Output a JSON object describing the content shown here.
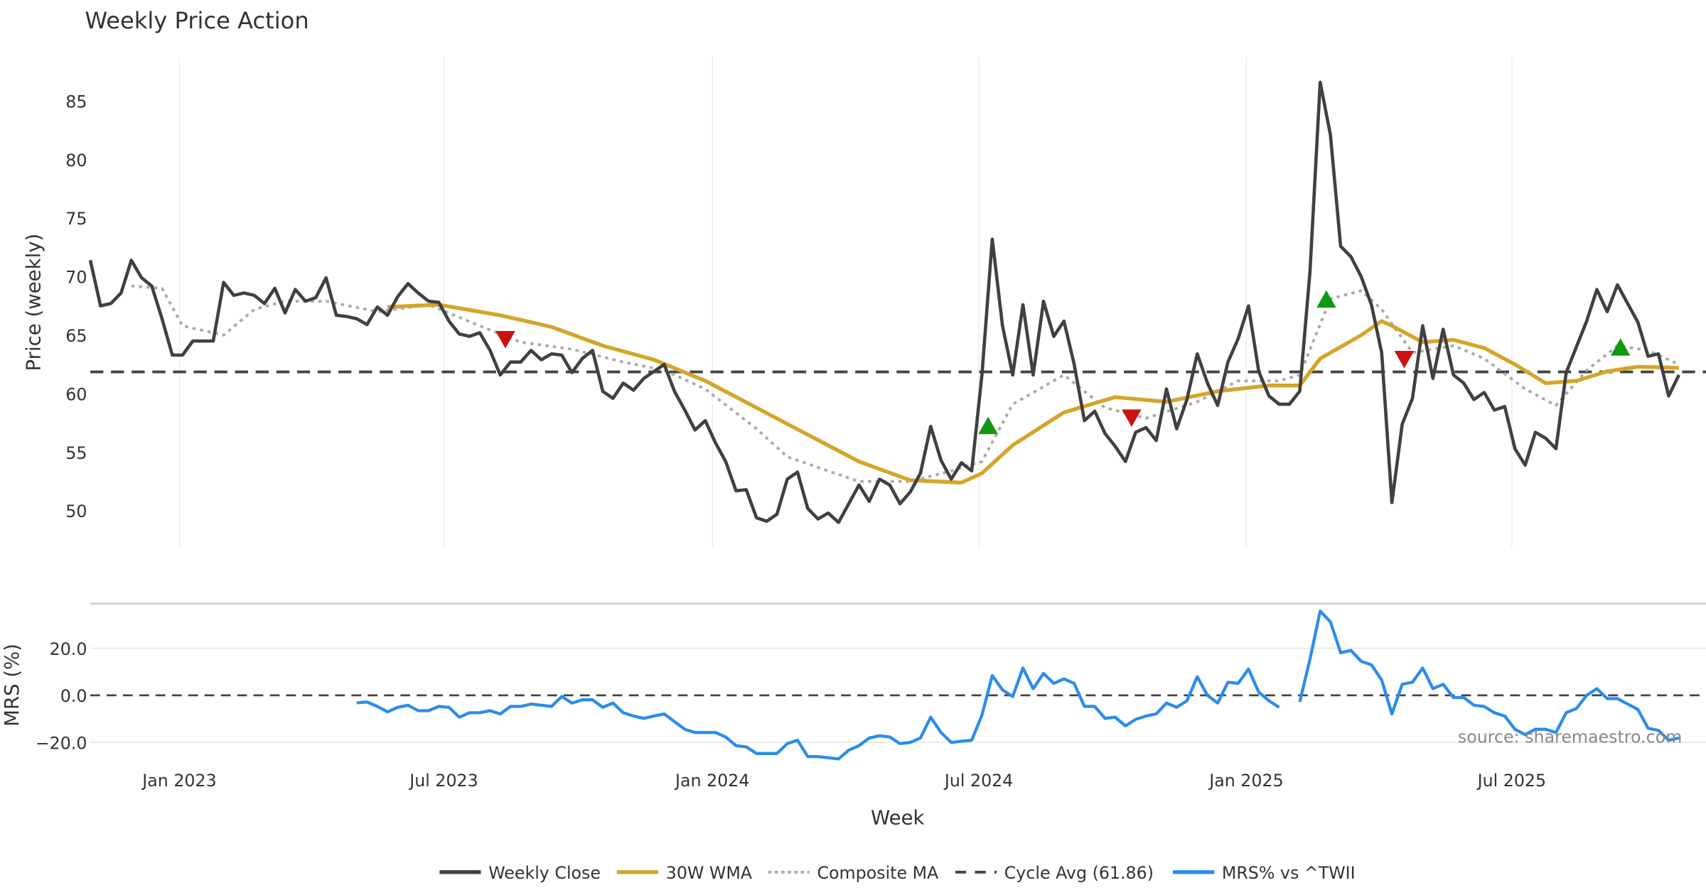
{
  "chart_data": [
    {
      "type": "line",
      "title": "Weekly Price Action",
      "xlabel": "Week",
      "ylabel": "Price (weekly)",
      "ylim": [
        46.9,
        88.8
      ],
      "yticks": [
        50,
        55,
        60,
        65,
        70,
        75,
        80,
        85
      ],
      "x_unit": "week index (0 = first week shown, ~Nov 2022)",
      "xticks": [
        {
          "label": "Jan 2023",
          "week": 8.7
        },
        {
          "label": "Jul 2023",
          "week": 34.5
        },
        {
          "label": "Jan 2024",
          "week": 60.7
        },
        {
          "label": "Jul 2024",
          "week": 86.7
        },
        {
          "label": "Jan 2025",
          "week": 112.8
        },
        {
          "label": "Jul 2025",
          "week": 138.7
        }
      ],
      "grid": "vertical",
      "cycle_avg": 61.86,
      "series": [
        {
          "name": "Weekly Close",
          "color": "#404040",
          "values": [
            71.4,
            67.5,
            67.7,
            68.6,
            71.4,
            69.9,
            69.2,
            66.4,
            63.3,
            63.3,
            64.5,
            64.5,
            64.5,
            69.5,
            68.4,
            68.6,
            68.4,
            67.7,
            69.0,
            66.9,
            68.9,
            67.9,
            68.2,
            69.9,
            66.7,
            66.6,
            66.4,
            65.9,
            67.4,
            66.7,
            68.3,
            69.4,
            68.6,
            67.9,
            67.8,
            66.2,
            65.1,
            64.9,
            65.2,
            63.7,
            61.6,
            62.7,
            62.7,
            63.7,
            62.9,
            63.4,
            63.3,
            61.8,
            63.0,
            63.7,
            60.2,
            59.6,
            60.9,
            60.3,
            61.3,
            61.9,
            62.5,
            60.2,
            58.6,
            56.9,
            57.7,
            55.8,
            54.2,
            51.7,
            51.8,
            49.4,
            49.1,
            49.7,
            52.7,
            53.3,
            50.2,
            49.3,
            49.8,
            49.0,
            50.6,
            52.2,
            50.8,
            52.7,
            52.2,
            50.6,
            51.6,
            53.2,
            57.2,
            54.3,
            52.7,
            54.1,
            53.4,
            61.6,
            73.2,
            65.8,
            61.6,
            67.6,
            61.6,
            67.9,
            64.9,
            66.2,
            62.5,
            57.7,
            58.5,
            56.6,
            55.5,
            54.2,
            56.7,
            57.1,
            56.0,
            60.4,
            57.0,
            59.5,
            63.4,
            60.9,
            59.0,
            62.7,
            64.7,
            67.5,
            61.9,
            59.8,
            59.1,
            59.1,
            60.2,
            70.4,
            86.6,
            82.1,
            72.6,
            71.7,
            70.0,
            67.6,
            63.5,
            50.7,
            57.4,
            59.6,
            65.8,
            61.3,
            65.5,
            61.6,
            60.9,
            59.5,
            60.1,
            58.6,
            58.9,
            55.3,
            53.9,
            56.7,
            56.2,
            55.3,
            61.8,
            64.0,
            66.2,
            68.9,
            67.0,
            69.3,
            67.7,
            66.1,
            63.2,
            63.4,
            59.8,
            61.6
          ]
        },
        {
          "name": "30W WMA",
          "color": "#d4a52a",
          "points": [
            [
              29,
              67.4
            ],
            [
              34,
              67.6
            ],
            [
              40,
              66.7
            ],
            [
              45,
              65.7
            ],
            [
              50,
              64.1
            ],
            [
              55,
              62.9
            ],
            [
              60,
              61.1
            ],
            [
              65,
              58.8
            ],
            [
              70,
              56.5
            ],
            [
              75,
              54.2
            ],
            [
              80,
              52.6
            ],
            [
              85,
              52.4
            ],
            [
              87,
              53.2
            ],
            [
              90,
              55.6
            ],
            [
              95,
              58.4
            ],
            [
              100,
              59.7
            ],
            [
              105,
              59.3
            ],
            [
              110,
              60.2
            ],
            [
              115,
              60.7
            ],
            [
              118,
              60.7
            ],
            [
              120,
              63.0
            ],
            [
              124,
              65.0
            ],
            [
              126,
              66.2
            ],
            [
              127,
              65.8
            ],
            [
              130,
              64.4
            ],
            [
              133,
              64.6
            ],
            [
              136,
              63.9
            ],
            [
              139,
              62.5
            ],
            [
              142,
              60.9
            ],
            [
              145,
              61.1
            ],
            [
              148,
              61.9
            ],
            [
              151,
              62.3
            ],
            [
              155,
              62.2
            ]
          ]
        },
        {
          "name": "Composite MA",
          "color": "#aaaaaa",
          "points": [
            [
              4,
              69.2
            ],
            [
              7,
              69.0
            ],
            [
              9,
              65.8
            ],
            [
              13,
              65.0
            ],
            [
              16,
              67.2
            ],
            [
              19,
              67.9
            ],
            [
              23,
              67.9
            ],
            [
              28,
              67.0
            ],
            [
              33,
              67.6
            ],
            [
              38,
              65.8
            ],
            [
              42,
              64.4
            ],
            [
              47,
              63.8
            ],
            [
              52,
              62.7
            ],
            [
              56,
              62.0
            ],
            [
              60,
              60.4
            ],
            [
              65,
              57.0
            ],
            [
              68,
              54.6
            ],
            [
              71,
              53.7
            ],
            [
              75,
              52.5
            ],
            [
              80,
              52.5
            ],
            [
              84,
              53.4
            ],
            [
              87,
              54.2
            ],
            [
              90,
              59.1
            ],
            [
              95,
              61.6
            ],
            [
              99,
              58.8
            ],
            [
              103,
              57.9
            ],
            [
              108,
              59.3
            ],
            [
              112,
              61.1
            ],
            [
              116,
              61.1
            ],
            [
              118,
              61.6
            ],
            [
              121,
              68.1
            ],
            [
              124,
              68.8
            ],
            [
              126,
              67.2
            ],
            [
              129,
              63.5
            ],
            [
              133,
              64.1
            ],
            [
              136,
              63.0
            ],
            [
              140,
              60.4
            ],
            [
              143,
              59.0
            ],
            [
              146,
              62.0
            ],
            [
              149,
              64.1
            ],
            [
              152,
              63.7
            ],
            [
              155,
              62.5
            ]
          ]
        },
        {
          "name": "Cycle Avg (61.86)",
          "color": "#444444",
          "constant": 61.86
        }
      ],
      "signals": [
        {
          "type": "sell",
          "week": 40.5,
          "value": 64.7,
          "color": "#cc1111"
        },
        {
          "type": "buy",
          "week": 87.6,
          "value": 57.2,
          "color": "#119911"
        },
        {
          "type": "sell",
          "week": 101.6,
          "value": 58.0,
          "color": "#cc1111"
        },
        {
          "type": "buy",
          "week": 120.6,
          "value": 68.0,
          "color": "#119911"
        },
        {
          "type": "sell",
          "week": 128.2,
          "value": 63.0,
          "color": "#cc1111"
        },
        {
          "type": "buy",
          "week": 149.3,
          "value": 63.9,
          "color": "#119911"
        }
      ]
    },
    {
      "type": "line",
      "ylabel": "MRS (%)",
      "ylim": [
        -28,
        39
      ],
      "yticks": [
        {
          "v": 20,
          "label": "20.0"
        },
        {
          "v": 0,
          "label": "0.0"
        },
        {
          "v": -20,
          "label": "−20.0"
        }
      ],
      "series": [
        {
          "name": "MRS% vs ^TWII",
          "color": "#2b8ceb",
          "start_week": 26,
          "values": [
            -3.2,
            -2.8,
            -4.7,
            -7.0,
            -5.1,
            -4.2,
            -6.5,
            -6.5,
            -4.7,
            -5.1,
            -9.3,
            -7.4,
            -7.4,
            -6.5,
            -7.9,
            -4.7,
            -4.7,
            -3.7,
            -4.2,
            -4.7,
            -0.5,
            -3.3,
            -1.9,
            -1.9,
            -5.1,
            -3.3,
            -7.4,
            -8.8,
            -9.8,
            -8.8,
            -7.9,
            -11.2,
            -14.4,
            -15.8,
            -15.8,
            -15.8,
            -17.7,
            -21.4,
            -21.9,
            -24.7,
            -24.7,
            -24.7,
            -20.5,
            -19.1,
            -26.0,
            -26.0,
            -26.5,
            -27.0,
            -23.3,
            -21.4,
            -18.1,
            -17.2,
            -17.7,
            -20.5,
            -20.0,
            -18.1,
            -9.3,
            -15.8,
            -20.0,
            -19.5,
            -19.1,
            -8.4,
            8.4,
            2.3,
            -0.5,
            11.6,
            2.8,
            9.3,
            5.1,
            7.0,
            5.1,
            -4.7,
            -4.7,
            -9.8,
            -9.3,
            -13.0,
            -10.2,
            -8.8,
            -7.9,
            -3.3,
            -5.1,
            -2.3,
            7.9,
            0,
            -3.3,
            5.6,
            5.1,
            11.2,
            1.4,
            -2.3,
            -5.1,
            null,
            -2.8,
            15.3,
            35.8,
            31.2,
            18.1,
            19.1,
            14.4,
            13.0,
            6.5,
            -7.9,
            4.7,
            5.6,
            11.6,
            2.8,
            4.7,
            -0.9,
            -0.9,
            -4.2,
            -4.7,
            -7.4,
            -8.8,
            -14.4,
            -16.7,
            -14.4,
            -14.4,
            -15.8,
            -7.4,
            -5.6,
            0,
            2.8,
            -1.4,
            -1.4,
            -3.7,
            -6.0,
            -14.0,
            -14.9,
            -19.1,
            -18.1
          ]
        }
      ],
      "zero_line": 0
    }
  ],
  "legend": {
    "placement": "bottom-center",
    "items": [
      {
        "label": "Weekly Close",
        "color": "#404040",
        "style": "solid"
      },
      {
        "label": "30W WMA",
        "color": "#d4a52a",
        "style": "solid"
      },
      {
        "label": "Composite MA",
        "color": "#aaaaaa",
        "style": "dotted"
      },
      {
        "label": "Cycle Avg (61.86)",
        "color": "#444444",
        "style": "dashed"
      },
      {
        "label": "MRS% vs ^TWII",
        "color": "#2b8ceb",
        "style": "solid"
      }
    ]
  },
  "source": "source: sharemaestro.com"
}
